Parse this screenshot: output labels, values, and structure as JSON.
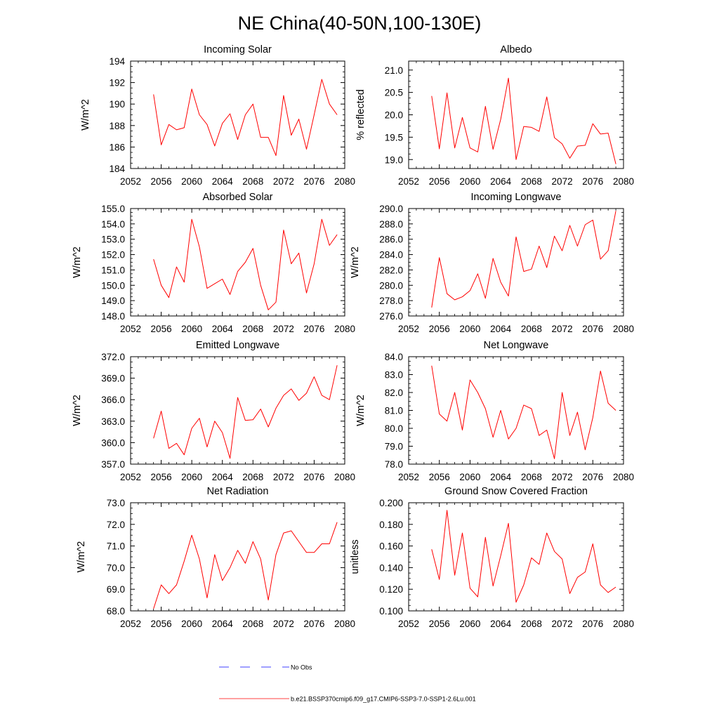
{
  "title": "NE China(40-50N,100-130E)",
  "colors": {
    "model": "#ff0000",
    "obs": "#0000ff",
    "axis": "#000000"
  },
  "legend": {
    "obs_label": "No Obs",
    "model_label": "b.e21.BSSP370cmip6.f09_g17.CMIP6-SSP3-7.0-SSP1-2.6Lu.001"
  },
  "chart_data": [
    {
      "type": "line",
      "title": "Incoming Solar",
      "ylabel": "W/m^2",
      "xlim": [
        2052,
        2080
      ],
      "ylim": [
        184,
        194
      ],
      "xticks": [
        2052,
        2056,
        2060,
        2064,
        2068,
        2072,
        2076,
        2080
      ],
      "yticks": [
        184,
        186,
        188,
        190,
        192,
        194
      ],
      "ydecimals": 0,
      "x": [
        2055,
        2056,
        2057,
        2058,
        2059,
        2060,
        2061,
        2062,
        2063,
        2064,
        2065,
        2066,
        2067,
        2068,
        2069,
        2070,
        2071,
        2072,
        2073,
        2074,
        2075,
        2076,
        2077,
        2078,
        2079
      ],
      "values": [
        190.9,
        186.2,
        188.1,
        187.6,
        187.8,
        191.4,
        189.0,
        188.1,
        186.1,
        188.2,
        189.1,
        186.7,
        189.0,
        190.0,
        186.9,
        186.9,
        185.2,
        190.8,
        187.1,
        188.6,
        185.8,
        189.0,
        192.3,
        190.0,
        189.0
      ]
    },
    {
      "type": "line",
      "title": "Albedo",
      "ylabel": "% reflected",
      "xlim": [
        2052,
        2080
      ],
      "ylim": [
        18.8,
        21.2
      ],
      "xticks": [
        2052,
        2056,
        2060,
        2064,
        2068,
        2072,
        2076,
        2080
      ],
      "yticks": [
        19.0,
        19.5,
        20.0,
        20.5,
        21.0
      ],
      "ydecimals": 1,
      "x": [
        2055,
        2056,
        2057,
        2058,
        2059,
        2060,
        2061,
        2062,
        2063,
        2064,
        2065,
        2066,
        2067,
        2068,
        2069,
        2070,
        2071,
        2072,
        2073,
        2074,
        2075,
        2076,
        2077,
        2078,
        2079
      ],
      "values": [
        20.42,
        19.24,
        20.49,
        19.26,
        19.94,
        19.26,
        19.17,
        20.19,
        19.23,
        19.9,
        20.82,
        19.0,
        19.74,
        19.72,
        19.63,
        20.4,
        19.49,
        19.35,
        19.03,
        19.3,
        19.32,
        19.8,
        19.57,
        19.59,
        18.9
      ]
    },
    {
      "type": "line",
      "title": "Absorbed Solar",
      "ylabel": "W/m^2",
      "xlim": [
        2052,
        2080
      ],
      "ylim": [
        148,
        155
      ],
      "xticks": [
        2052,
        2056,
        2060,
        2064,
        2068,
        2072,
        2076,
        2080
      ],
      "yticks": [
        148,
        149,
        150,
        151,
        152,
        153,
        154,
        155
      ],
      "ydecimals": 1,
      "x": [
        2055,
        2056,
        2057,
        2058,
        2059,
        2060,
        2061,
        2062,
        2063,
        2064,
        2065,
        2066,
        2067,
        2068,
        2069,
        2070,
        2071,
        2072,
        2073,
        2074,
        2075,
        2076,
        2077,
        2078,
        2079
      ],
      "values": [
        151.7,
        150.0,
        149.2,
        151.2,
        150.2,
        154.3,
        152.5,
        149.8,
        150.1,
        150.4,
        149.4,
        150.9,
        151.5,
        152.4,
        150.0,
        148.4,
        148.9,
        153.6,
        151.4,
        152.1,
        149.5,
        151.4,
        154.3,
        152.6,
        153.3
      ]
    },
    {
      "type": "line",
      "title": "Incoming Longwave",
      "ylabel": "W/m^2",
      "xlim": [
        2052,
        2080
      ],
      "ylim": [
        276,
        290
      ],
      "xticks": [
        2052,
        2056,
        2060,
        2064,
        2068,
        2072,
        2076,
        2080
      ],
      "yticks": [
        276,
        278,
        280,
        282,
        284,
        286,
        288,
        290
      ],
      "ydecimals": 1,
      "x": [
        2055,
        2056,
        2057,
        2058,
        2059,
        2060,
        2061,
        2062,
        2063,
        2064,
        2065,
        2066,
        2067,
        2068,
        2069,
        2070,
        2071,
        2072,
        2073,
        2074,
        2075,
        2076,
        2077,
        2078,
        2079
      ],
      "values": [
        277.1,
        283.6,
        278.9,
        278.1,
        278.5,
        279.3,
        281.5,
        278.3,
        283.5,
        280.4,
        278.6,
        286.3,
        281.8,
        282.1,
        285.1,
        282.3,
        286.4,
        284.5,
        287.8,
        285.1,
        287.9,
        288.5,
        283.4,
        284.5,
        289.7
      ]
    },
    {
      "type": "line",
      "title": "Emitted Longwave",
      "ylabel": "W/m^2",
      "xlim": [
        2052,
        2080
      ],
      "ylim": [
        357,
        372
      ],
      "xticks": [
        2052,
        2056,
        2060,
        2064,
        2068,
        2072,
        2076,
        2080
      ],
      "yticks": [
        357,
        360,
        363,
        366,
        369,
        372
      ],
      "ydecimals": 1,
      "x": [
        2055,
        2056,
        2057,
        2058,
        2059,
        2060,
        2061,
        2062,
        2063,
        2064,
        2065,
        2066,
        2067,
        2068,
        2069,
        2070,
        2071,
        2072,
        2073,
        2074,
        2075,
        2076,
        2077,
        2078,
        2079
      ],
      "values": [
        360.6,
        364.4,
        359.2,
        359.9,
        358.3,
        362.0,
        363.4,
        359.4,
        363.0,
        361.4,
        357.8,
        366.3,
        363.1,
        363.2,
        364.7,
        362.2,
        364.8,
        366.6,
        367.5,
        365.9,
        366.9,
        369.2,
        366.6,
        366.0,
        370.8
      ]
    },
    {
      "type": "line",
      "title": "Net Longwave",
      "ylabel": "W/m^2",
      "xlim": [
        2052,
        2080
      ],
      "ylim": [
        78,
        84
      ],
      "xticks": [
        2052,
        2056,
        2060,
        2064,
        2068,
        2072,
        2076,
        2080
      ],
      "yticks": [
        78,
        79,
        80,
        81,
        82,
        83,
        84
      ],
      "ydecimals": 1,
      "x": [
        2055,
        2056,
        2057,
        2058,
        2059,
        2060,
        2061,
        2062,
        2063,
        2064,
        2065,
        2066,
        2067,
        2068,
        2069,
        2070,
        2071,
        2072,
        2073,
        2074,
        2075,
        2076,
        2077,
        2078,
        2079
      ],
      "values": [
        83.5,
        80.8,
        80.4,
        82.0,
        79.9,
        82.7,
        82.0,
        81.1,
        79.5,
        81.0,
        79.4,
        80.0,
        81.3,
        81.1,
        79.6,
        79.9,
        78.3,
        82.0,
        79.6,
        80.9,
        78.8,
        80.6,
        83.2,
        81.4,
        81.0
      ]
    },
    {
      "type": "line",
      "title": "Net Radiation",
      "ylabel": "W/m^2",
      "xlim": [
        2052,
        2080
      ],
      "ylim": [
        68,
        73
      ],
      "xticks": [
        2052,
        2056,
        2060,
        2064,
        2068,
        2072,
        2076,
        2080
      ],
      "yticks": [
        68,
        69,
        70,
        71,
        72,
        73
      ],
      "ydecimals": 1,
      "x": [
        2055,
        2056,
        2057,
        2058,
        2059,
        2060,
        2061,
        2062,
        2063,
        2064,
        2065,
        2066,
        2067,
        2068,
        2069,
        2070,
        2071,
        2072,
        2073,
        2074,
        2075,
        2076,
        2077,
        2078,
        2079
      ],
      "values": [
        68.1,
        69.2,
        68.8,
        69.2,
        70.3,
        71.5,
        70.4,
        68.6,
        70.6,
        69.4,
        70.0,
        70.8,
        70.2,
        71.2,
        70.4,
        68.5,
        70.6,
        71.6,
        71.7,
        71.2,
        70.7,
        70.7,
        71.1,
        71.1,
        72.1
      ]
    },
    {
      "type": "line",
      "title": "Ground Snow Covered Fraction",
      "ylabel": "unitless",
      "xlim": [
        2052,
        2080
      ],
      "ylim": [
        0.1,
        0.2
      ],
      "xticks": [
        2052,
        2056,
        2060,
        2064,
        2068,
        2072,
        2076,
        2080
      ],
      "yticks": [
        0.1,
        0.12,
        0.14,
        0.16,
        0.18,
        0.2
      ],
      "ydecimals": 3,
      "x": [
        2055,
        2056,
        2057,
        2058,
        2059,
        2060,
        2061,
        2062,
        2063,
        2064,
        2065,
        2066,
        2067,
        2068,
        2069,
        2070,
        2071,
        2072,
        2073,
        2074,
        2075,
        2076,
        2077,
        2078,
        2079
      ],
      "values": [
        0.157,
        0.129,
        0.193,
        0.133,
        0.172,
        0.121,
        0.113,
        0.168,
        0.123,
        0.151,
        0.181,
        0.108,
        0.124,
        0.149,
        0.143,
        0.172,
        0.155,
        0.148,
        0.116,
        0.131,
        0.136,
        0.162,
        0.124,
        0.117,
        0.122
      ]
    }
  ]
}
